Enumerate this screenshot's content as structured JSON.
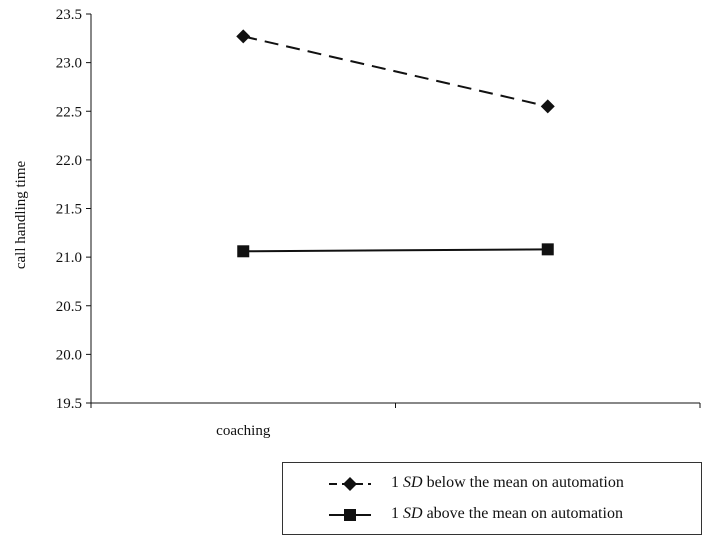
{
  "chart_data": {
    "type": "line",
    "categories": [
      "coaching",
      ""
    ],
    "ylabel": "call handling time",
    "xlabel": "",
    "ylim": [
      19.5,
      23.5
    ],
    "yticks": [
      "19.5",
      "20.0",
      "20.5",
      "21.0",
      "21.5",
      "22.0",
      "22.5",
      "23.0",
      "23.5"
    ],
    "grid": false,
    "legend_position": "bottom-right",
    "series": [
      {
        "name": "1 SD below the mean on automation",
        "values": [
          23.27,
          22.55
        ],
        "marker": "diamond",
        "line_style": "dashed",
        "color": "#111111"
      },
      {
        "name": "1 SD above the mean on automation",
        "values": [
          21.06,
          21.08
        ],
        "marker": "square",
        "line_style": "solid",
        "color": "#111111"
      }
    ]
  },
  "legend": {
    "items": [
      {
        "prefix": "1 ",
        "sd": "SD",
        "suffix": " below the mean on automation"
      },
      {
        "prefix": "1 ",
        "sd": "SD",
        "suffix": " above the mean on automation"
      }
    ]
  }
}
